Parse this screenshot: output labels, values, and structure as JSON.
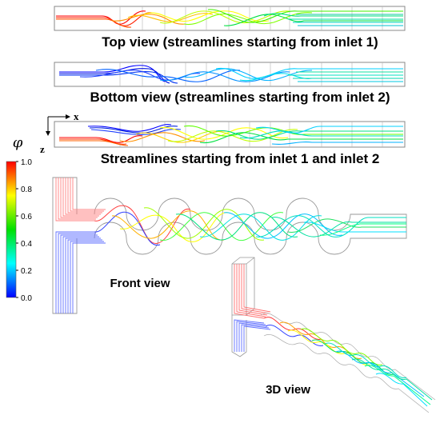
{
  "panels": {
    "top_view": {
      "caption": "Top view (streamlines starting from inlet 1)"
    },
    "bottom_view": {
      "caption": "Bottom view (streamlines starting from inlet 2)"
    },
    "both_view": {
      "caption": "Streamlines starting from inlet 1 and inlet 2"
    },
    "front_view": {
      "caption": "Front view"
    },
    "view_3d": {
      "caption": "3D view"
    }
  },
  "axes": {
    "x_label": "x",
    "z_label": "z"
  },
  "colorbar": {
    "symbol": "φ",
    "ticks": [
      "1.0",
      "0.8",
      "0.6",
      "0.4",
      "0.2",
      "0.0"
    ],
    "colors": [
      "#ff0000",
      "#ffff00",
      "#00e000",
      "#00ffff",
      "#0000ff"
    ]
  }
}
